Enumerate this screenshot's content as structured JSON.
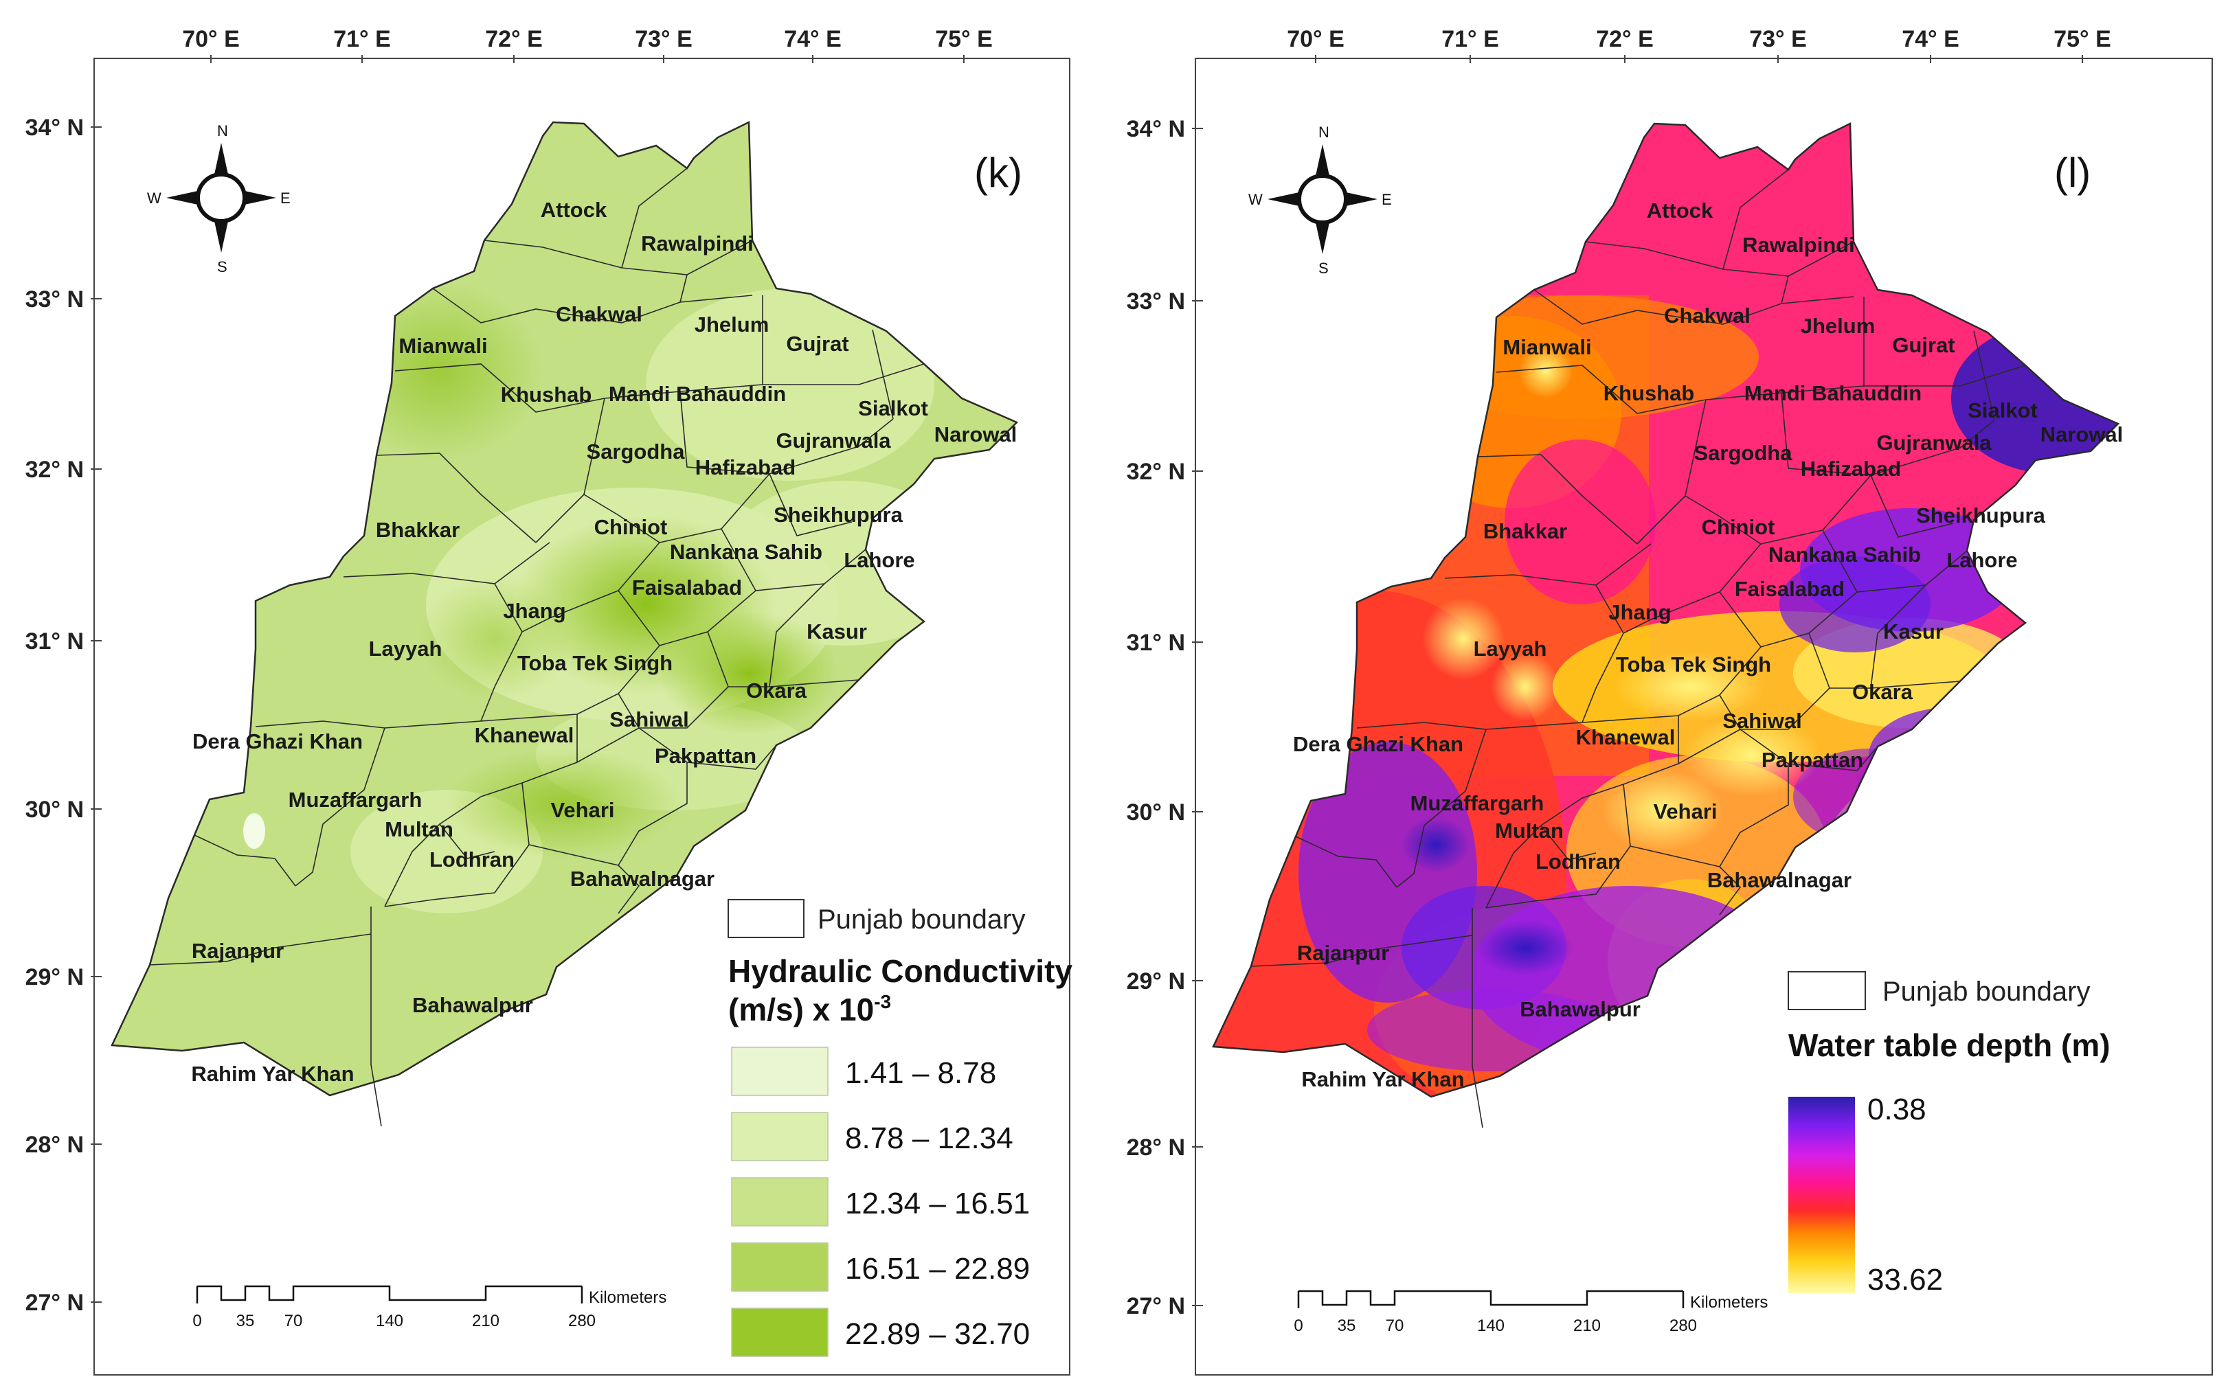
{
  "lon_ticks": [
    "70° E",
    "71° E",
    "72° E",
    "73° E",
    "74° E",
    "75° E"
  ],
  "lat_ticks": [
    "34° N",
    "33° N",
    "32° N",
    "31° N",
    "30° N",
    "29° N",
    "28° N",
    "27° N"
  ],
  "compass": {
    "n": "N",
    "s": "S",
    "e": "E",
    "w": "W"
  },
  "districts": [
    "Attock",
    "Rawalpindi",
    "Chakwal",
    "Jhelum",
    "Gujrat",
    "Mianwali",
    "Khushab",
    "Mandi Bahauddin",
    "Sialkot",
    "Narowal",
    "Sargodha",
    "Gujranwala",
    "Hafizabad",
    "Sheikhupura",
    "Bhakkar",
    "Chiniot",
    "Nankana Sahib",
    "Lahore",
    "Faisalabad",
    "Jhang",
    "Kasur",
    "Layyah",
    "Toba Tek Singh",
    "Okara",
    "Sahiwal",
    "Dera Ghazi Khan",
    "Khanewal",
    "Pakpattan",
    "Muzaffargarh",
    "Vehari",
    "Multan",
    "Lodhran",
    "Bahawalnagar",
    "Rajanpur",
    "Bahawalpur",
    "Rahim Yar Khan"
  ],
  "panel_k": {
    "label": "(k)",
    "boundary_label": "Punjab boundary",
    "legend_title_1": "Hydraulic Conductivity",
    "legend_title_2": "(m/s) x 10",
    "legend_exponent": "-3",
    "classes": [
      {
        "label": "1.41 – 8.78",
        "color": "#eaf6d2"
      },
      {
        "label": "8.78 – 12.34",
        "color": "#dcefaf"
      },
      {
        "label": "12.34 – 16.51",
        "color": "#c8e38a"
      },
      {
        "label": "16.51 – 22.89",
        "color": "#b0d55a"
      },
      {
        "label": "22.89 – 32.70",
        "color": "#99c82a"
      }
    ]
  },
  "panel_l": {
    "label": "(l)",
    "boundary_label": "Punjab boundary",
    "legend_title": "Water table depth (m)",
    "ramp_max_label": "0.38",
    "ramp_min_label": "33.62",
    "ramp_colors": [
      "#2a1fa8",
      "#7b1ff0",
      "#d81ee6",
      "#ff1491",
      "#ff2a2a",
      "#ff8a00",
      "#ffd21a",
      "#fffca8"
    ]
  },
  "scale_bar": {
    "unit": "Kilometers",
    "ticks": [
      "0",
      "35",
      "70",
      "140",
      "210",
      "280"
    ]
  },
  "colors": {
    "boundary": "#2a2a2a",
    "green_base": "#c3e084",
    "heat_base": "#ff2a78"
  }
}
